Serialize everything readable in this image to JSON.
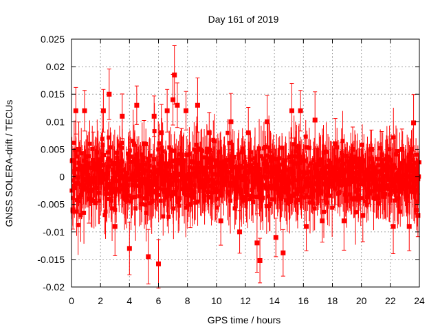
{
  "chart_data": {
    "type": "scatter",
    "title": "Day 161 of 2019",
    "xlabel": "GPS time / hours",
    "ylabel": "GNSS SOLERA-drift / TECUs",
    "xlim": [
      0,
      24
    ],
    "ylim": [
      -0.02,
      0.025
    ],
    "xticks": [
      0,
      2,
      4,
      6,
      8,
      10,
      12,
      14,
      16,
      18,
      20,
      22,
      24
    ],
    "xtick_labels": [
      "0",
      "2",
      "4",
      "6",
      "8",
      "10",
      "12",
      "14",
      "16",
      "18",
      "20",
      "22",
      "24"
    ],
    "yticks": [
      -0.02,
      -0.015,
      -0.01,
      -0.005,
      0,
      0.005,
      0.01,
      0.015,
      0.02,
      0.025
    ],
    "ytick_labels": [
      "-0.02",
      "-0.015",
      "-0.01",
      "-0.005",
      "0",
      "0.005",
      "0.01",
      "0.015",
      "0.02",
      "0.025"
    ],
    "grid": true,
    "marker_color": "#ff0000",
    "series": [
      {
        "name": "SOLERA drift",
        "x": [
          0.1,
          0.3,
          0.5,
          0.9,
          1.2,
          1.5,
          2.2,
          2.6,
          3.0,
          3.5,
          4.0,
          4.5,
          5.0,
          5.3,
          5.7,
          6.0,
          6.2,
          6.6,
          7.0,
          7.1,
          7.3,
          7.6,
          7.9,
          8.2,
          8.7,
          9.5,
          10.3,
          11.0,
          11.6,
          12.2,
          12.8,
          13.0,
          13.5,
          14.1,
          14.6,
          15.2,
          15.8,
          16.2,
          16.8,
          17.3,
          18.2,
          18.8,
          19.4,
          20.1,
          20.7,
          21.4,
          22.2,
          22.8,
          23.3,
          23.6,
          23.9
        ],
        "y": [
          -0.006,
          0.012,
          0.005,
          0.012,
          -0.004,
          0.003,
          0.012,
          0.015,
          -0.009,
          0.011,
          -0.013,
          0.013,
          0.006,
          -0.0145,
          0.011,
          -0.0158,
          0.008,
          0.012,
          0.014,
          0.0185,
          0.013,
          0.004,
          0.012,
          -0.005,
          0.013,
          0.008,
          -0.008,
          0.01,
          -0.01,
          0.008,
          -0.012,
          -0.0152,
          0.01,
          -0.011,
          -0.0138,
          0.012,
          0.012,
          -0.009,
          0.0103,
          -0.008,
          0.006,
          -0.008,
          0.005,
          -0.007,
          0.005,
          0.004,
          -0.009,
          0.005,
          -0.009,
          0.0098,
          -0.007
        ]
      }
    ]
  }
}
